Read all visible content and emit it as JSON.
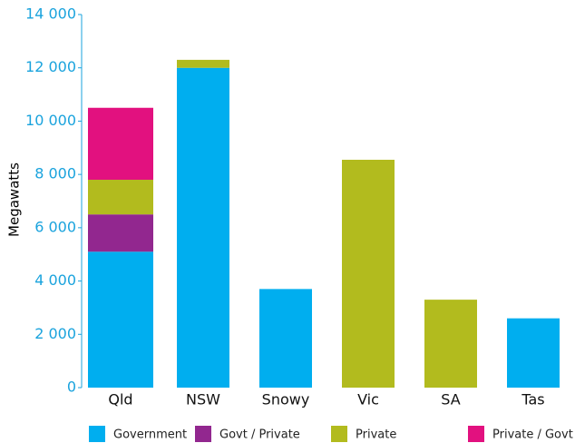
{
  "chart_data": {
    "type": "stacked_bar",
    "y_label": "Megawatts",
    "categories": [
      "Qld",
      "NSW",
      "Snowy",
      "Vic",
      "SA",
      "Tas"
    ],
    "series": [
      {
        "name": "Government",
        "color": "#00aeef",
        "values": [
          5100,
          12000,
          3700,
          null,
          null,
          2600
        ]
      },
      {
        "name": "Govt / Private",
        "color": "#92278f",
        "values": [
          1400,
          null,
          null,
          null,
          null,
          null
        ]
      },
      {
        "name": "Private",
        "color": "#b2bb1e",
        "values": [
          1300,
          300,
          null,
          8550,
          3300,
          null
        ]
      },
      {
        "name": "Private / Govt PPA",
        "color": "#e2117f",
        "values": [
          2700,
          null,
          null,
          null,
          null,
          null
        ]
      }
    ],
    "ylim": [
      0,
      14000
    ],
    "yticks": [
      0,
      {
        "value": 2000,
        "label": "2 000"
      },
      {
        "value": 4000,
        "label": "4 000"
      },
      {
        "value": 6000,
        "label": "6 000"
      },
      {
        "value": 8000,
        "label": "8 000"
      },
      {
        "value": 10000,
        "label": "10 000"
      },
      {
        "value": 12000,
        "label": "12 000"
      },
      {
        "value": 14000,
        "label": "14 000"
      }
    ]
  }
}
